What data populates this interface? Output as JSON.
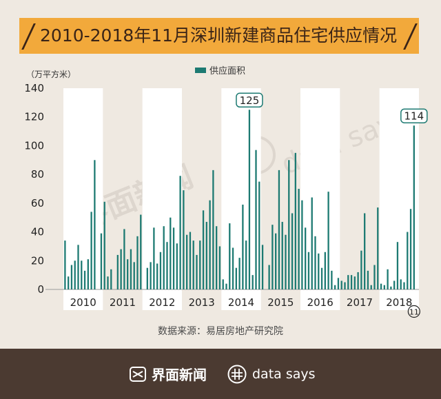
{
  "title": "2010-2018年11月深圳新建商品住宅供应情况",
  "source": "数据来源：易居房地产研究院",
  "brand": {
    "jiemian": "界面新闻",
    "datasays": "data says",
    "watermark_jiemian": "界面新闻",
    "watermark_datasays": "data says"
  },
  "colors": {
    "bar": "#1d7a72",
    "title_bg": "#f2a93b",
    "footer_bg": "#4b3a31",
    "background": "#efe9e1",
    "band": "#ffffff"
  },
  "chart_data": {
    "type": "bar",
    "title": "2010-2018年11月深圳新建商品住宅供应情况",
    "ylabel": "（万平方米）",
    "legend": "供应面积",
    "legend_position": "top-center",
    "ylim": [
      0,
      140
    ],
    "yticks": [
      "0",
      "20",
      "40",
      "60",
      "80",
      "100",
      "120",
      "140"
    ],
    "years": [
      "2010",
      "2011",
      "2012",
      "2013",
      "2014",
      "2015",
      "2016",
      "2017",
      "2018"
    ],
    "end_marker": "11",
    "series": [
      {
        "name": "供应面积",
        "values": [
          34,
          9,
          17,
          20,
          31,
          20,
          13,
          21,
          54,
          90,
          0,
          39,
          61,
          9,
          14,
          0,
          24,
          28,
          42,
          21,
          28,
          19,
          37,
          52,
          0,
          15,
          19,
          43,
          18,
          26,
          44,
          33,
          50,
          43,
          32,
          79,
          69,
          38,
          40,
          34,
          24,
          34,
          55,
          47,
          62,
          83,
          44,
          30,
          7,
          4,
          46,
          29,
          15,
          22,
          59,
          34,
          125,
          10,
          97,
          75,
          31,
          0,
          17,
          45,
          39,
          83,
          47,
          38,
          90,
          53,
          95,
          70,
          62,
          43,
          26,
          64,
          37,
          25,
          15,
          26,
          68,
          13,
          3,
          8,
          6,
          5,
          10,
          10,
          9,
          12,
          27,
          53,
          13,
          3,
          17,
          57,
          4,
          3,
          14,
          2,
          6,
          33,
          7,
          5,
          40,
          56,
          114
        ]
      }
    ],
    "annotations": [
      {
        "label": "125",
        "value": 125,
        "month": "2014-09"
      },
      {
        "label": "114",
        "value": 114,
        "month": "2018-11"
      }
    ]
  }
}
